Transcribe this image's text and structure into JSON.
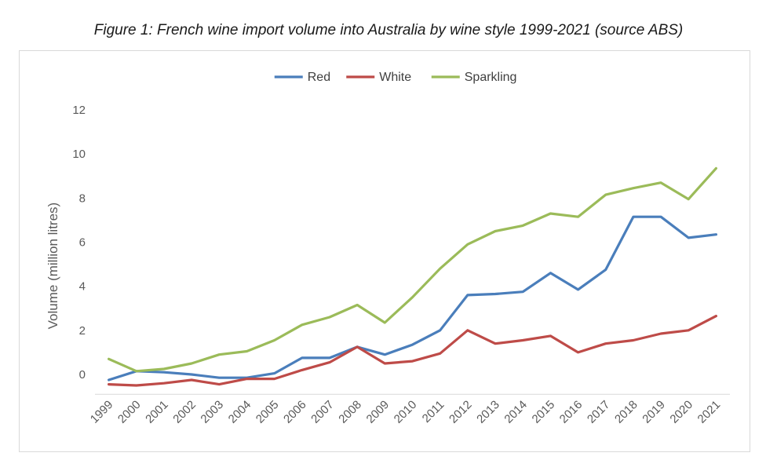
{
  "caption": "Figure 1: French wine import volume into Australia by wine style 1999-2021 (source ABS)",
  "chart_data": {
    "type": "line",
    "title": "Figure 1: French wine import volume into Australia by wine style 1999-2021 (source ABS)",
    "xlabel": "",
    "ylabel": "Volume (million litres)",
    "ylim": [
      -0.9,
      12
    ],
    "yticks": [
      0,
      2,
      4,
      6,
      8,
      10,
      12
    ],
    "grid": false,
    "legend_position": "top-center",
    "categories": [
      "1999",
      "2000",
      "2001",
      "2002",
      "2003",
      "2004",
      "2005",
      "2006",
      "2007",
      "2008",
      "2009",
      "2010",
      "2011",
      "2012",
      "2013",
      "2014",
      "2015",
      "2016",
      "2017",
      "2018",
      "2019",
      "2020",
      "2021"
    ],
    "series": [
      {
        "name": "Red",
        "color": "#4a7ebb",
        "values": [
          -0.25,
          0.15,
          0.1,
          0.0,
          -0.15,
          -0.15,
          0.05,
          0.75,
          0.75,
          1.25,
          0.9,
          1.35,
          2.0,
          3.6,
          3.65,
          3.75,
          4.6,
          3.85,
          4.75,
          7.15,
          7.15,
          6.2,
          6.35
        ]
      },
      {
        "name": "White",
        "color": "#be4b48",
        "values": [
          -0.45,
          -0.5,
          -0.4,
          -0.25,
          -0.45,
          -0.2,
          -0.2,
          0.2,
          0.55,
          1.25,
          0.5,
          0.6,
          0.95,
          2.0,
          1.4,
          1.55,
          1.75,
          1.0,
          1.4,
          1.55,
          1.85,
          2.0,
          2.65
        ]
      },
      {
        "name": "Sparkling",
        "color": "#9bbb59",
        "values": [
          0.7,
          0.15,
          0.25,
          0.5,
          0.9,
          1.05,
          1.55,
          2.25,
          2.6,
          3.15,
          2.35,
          3.5,
          4.8,
          5.9,
          6.5,
          6.75,
          7.3,
          7.15,
          8.15,
          8.45,
          8.7,
          7.95,
          9.35
        ]
      }
    ]
  }
}
